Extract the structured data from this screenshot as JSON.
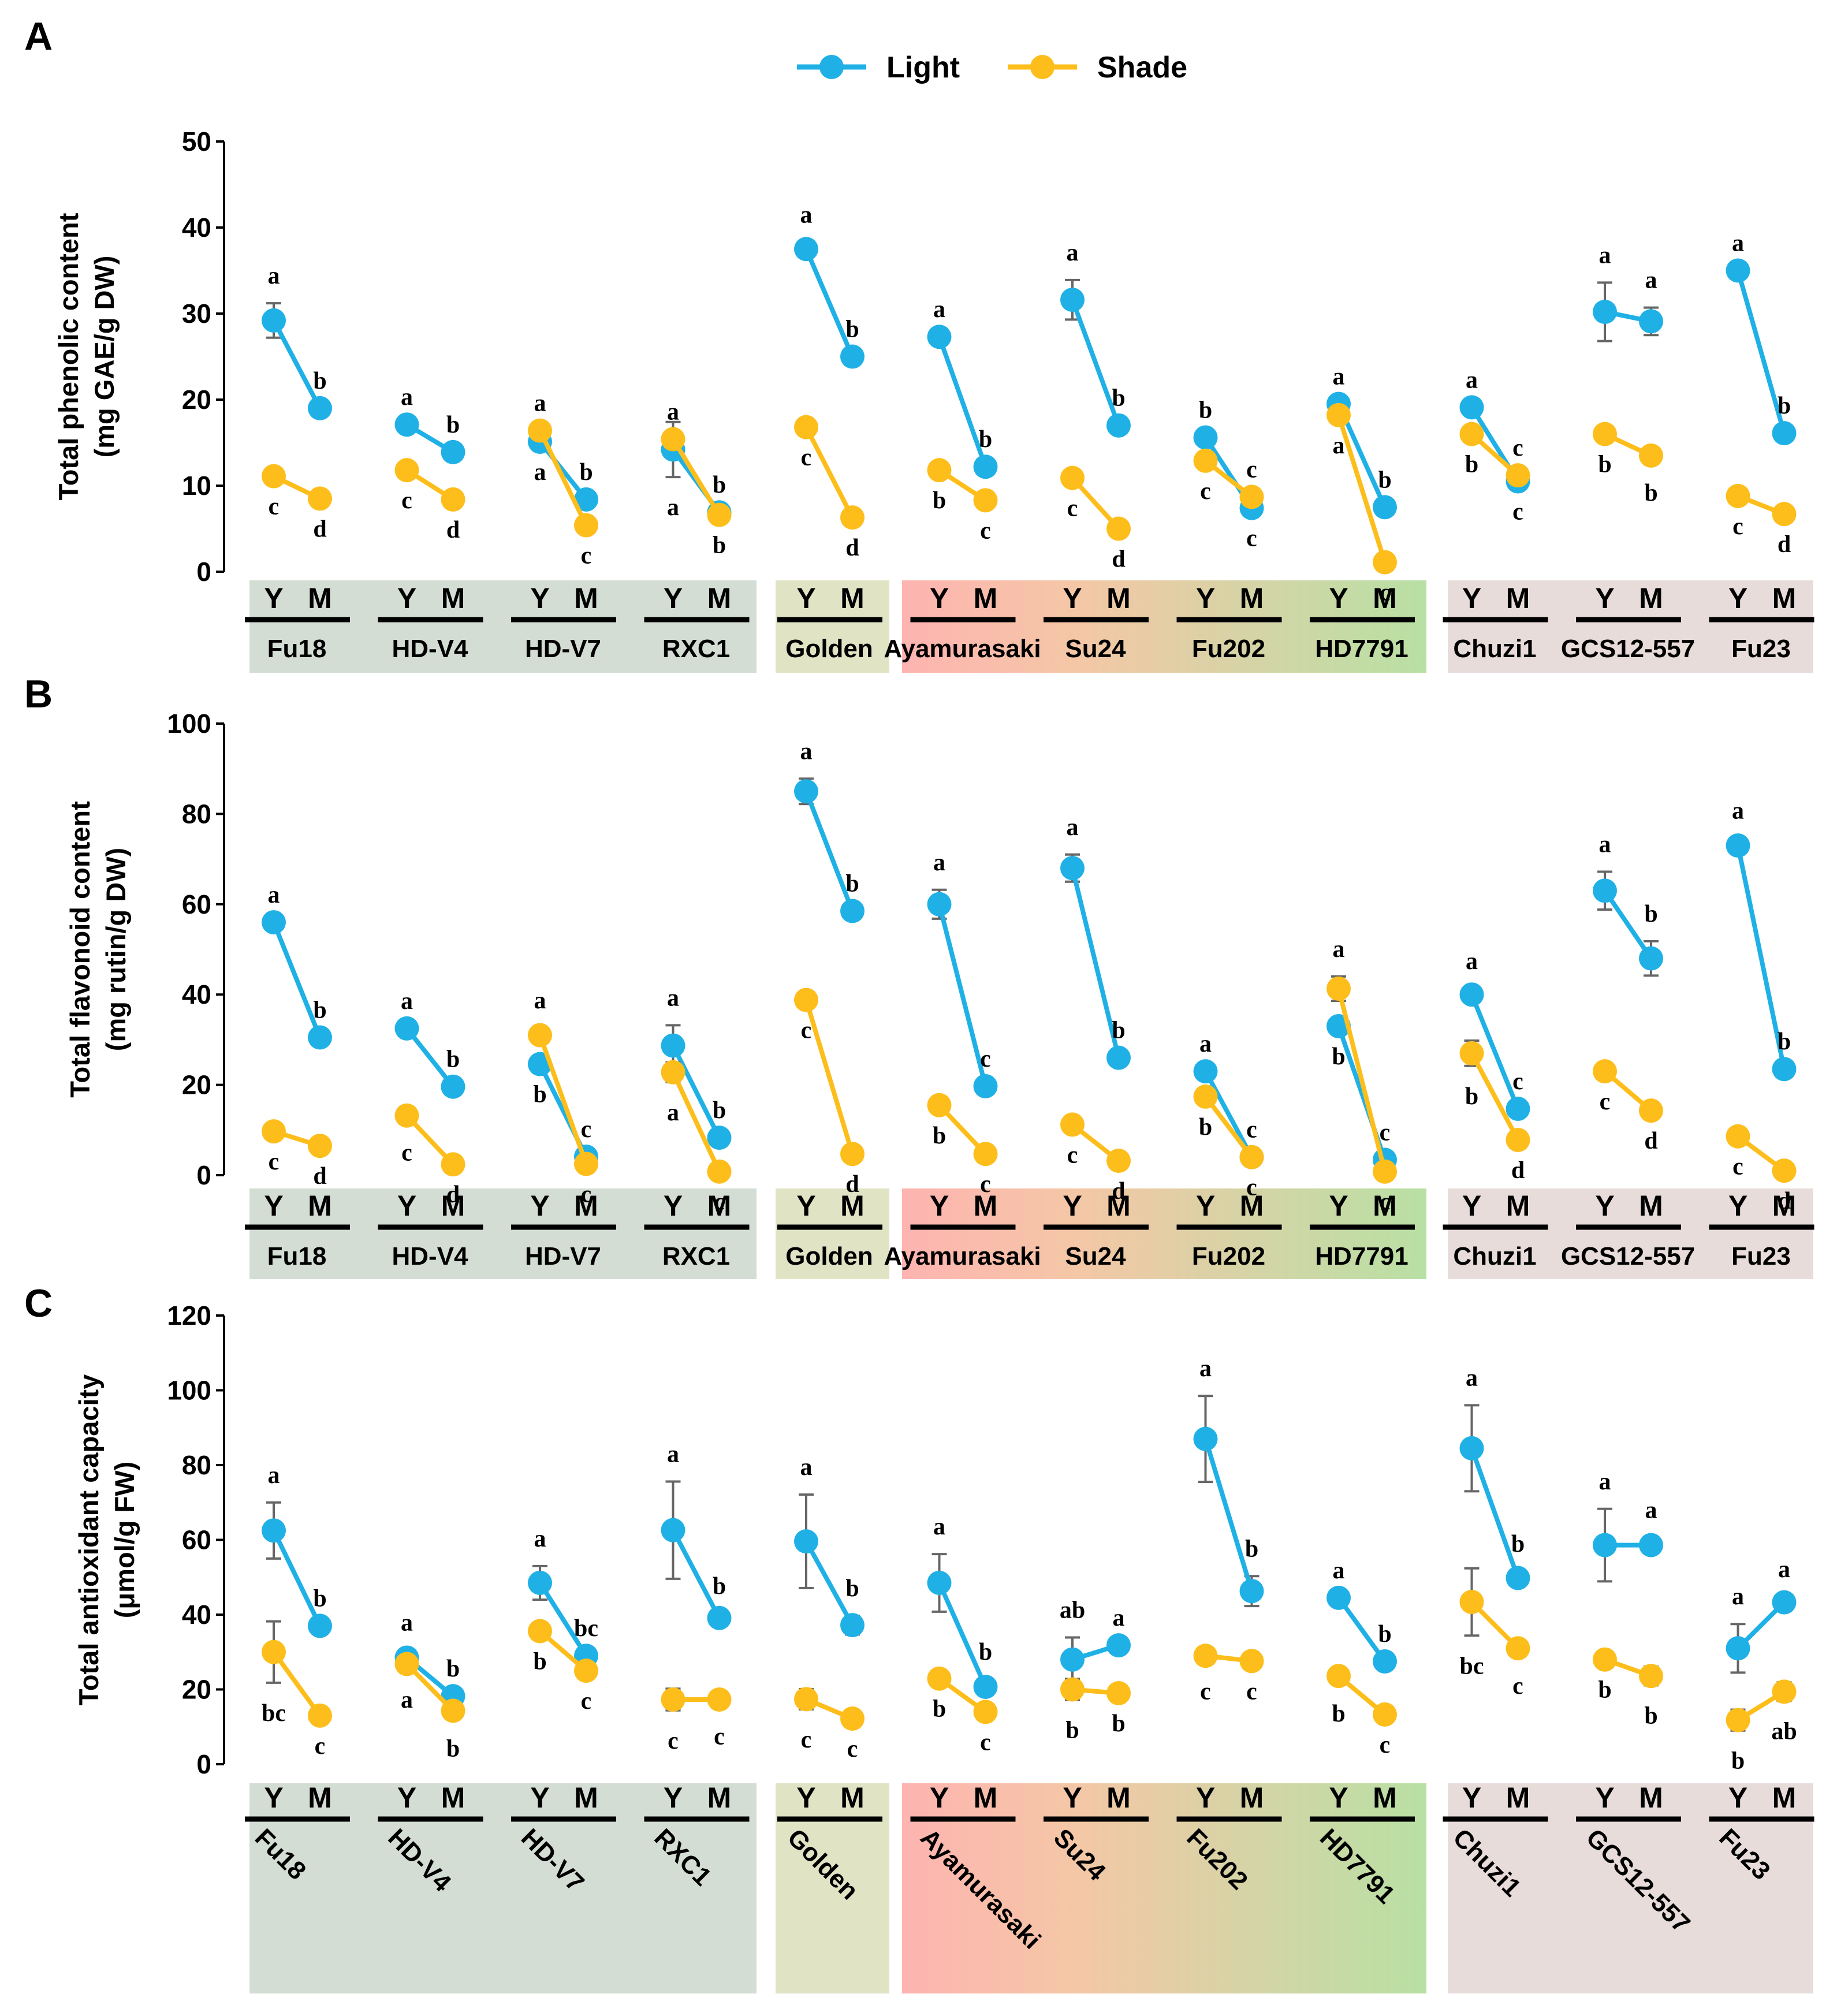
{
  "colors": {
    "light": "#1FB1E6",
    "shade": "#FDBE1B",
    "errorbar": "#666666",
    "axis": "#000000"
  },
  "legend": [
    {
      "key": "light",
      "label": "Light"
    },
    {
      "key": "shade",
      "label": "Shade"
    }
  ],
  "stage_labels": {
    "young": "Y",
    "mature": "M"
  },
  "cultivars": [
    "Fu18",
    "HD-V4",
    "HD-V7",
    "RXC1",
    "Golden",
    "Ayamurasaki",
    "Su24",
    "Fu202",
    "HD7791",
    "Chuzi1",
    "GCS12-557",
    "Fu23"
  ],
  "cultivar_groups": [
    {
      "members": [
        "Fu18",
        "HD-V4",
        "HD-V7",
        "RXC1"
      ],
      "fill": "#D4DDD4"
    },
    {
      "members": [
        "Golden"
      ],
      "fill": "#E1E3C5"
    },
    {
      "members": [
        "Ayamurasaki",
        "Su24",
        "Fu202",
        "HD7791"
      ],
      "fill_gradient": [
        "#FEB4B0",
        "#F4C7A6",
        "#D5D4A6",
        "#B8E0A4"
      ]
    },
    {
      "members": [
        "Chuzi1",
        "GCS12-557",
        "Fu23"
      ],
      "fill": "#E8DCDB"
    }
  ],
  "chart_data": [
    {
      "panel": "A",
      "type": "line",
      "ylabel_lines": [
        "Total phenolic content",
        "(mg GAE/g DW)"
      ],
      "ylim": [
        0,
        50
      ],
      "yticks": [
        0,
        10,
        20,
        30,
        40,
        50
      ],
      "rotated_cultivar_labels": false,
      "series": [
        {
          "name": "Light",
          "values": [
            [
              29.2,
              19.0
            ],
            [
              17.1,
              13.9
            ],
            [
              15.1,
              8.4
            ],
            [
              14.2,
              6.9
            ],
            [
              37.5,
              25.0
            ],
            [
              27.3,
              12.2
            ],
            [
              31.6,
              17.0
            ],
            [
              15.6,
              7.4
            ],
            [
              19.5,
              7.5
            ],
            [
              19.1,
              10.5
            ],
            [
              30.2,
              29.1
            ],
            [
              35.0,
              16.1
            ]
          ],
          "errors": [
            [
              2.0,
              0
            ],
            [
              0,
              0
            ],
            [
              0,
              0
            ],
            [
              3.2,
              0
            ],
            [
              0.8,
              0
            ],
            [
              0,
              0
            ],
            [
              2.3,
              0
            ],
            [
              0,
              0
            ],
            [
              0,
              0
            ],
            [
              0,
              0
            ],
            [
              3.4,
              1.6
            ],
            [
              0,
              0
            ]
          ],
          "letters": [
            [
              "a",
              "b"
            ],
            [
              "a",
              "b"
            ],
            [
              "a",
              "b"
            ],
            [
              "a",
              "b"
            ],
            [
              "a",
              "b"
            ],
            [
              "a",
              "b"
            ],
            [
              "a",
              "b"
            ],
            [
              "b",
              "c"
            ],
            [
              "a",
              "b"
            ],
            [
              "a",
              "c"
            ],
            [
              "a",
              "a"
            ],
            [
              "a",
              "b"
            ]
          ]
        },
        {
          "name": "Shade",
          "values": [
            [
              11.1,
              8.5
            ],
            [
              11.8,
              8.4
            ],
            [
              16.4,
              5.4
            ],
            [
              15.4,
              6.6
            ],
            [
              16.8,
              6.3
            ],
            [
              11.8,
              8.3
            ],
            [
              10.9,
              5.0
            ],
            [
              12.9,
              8.7
            ],
            [
              18.2,
              1.1
            ],
            [
              16.0,
              11.2
            ],
            [
              16.0,
              13.5
            ],
            [
              8.8,
              6.7
            ]
          ],
          "errors": [
            [
              0,
              0
            ],
            [
              0,
              0
            ],
            [
              0,
              0
            ],
            [
              0,
              0
            ],
            [
              0,
              0
            ],
            [
              0,
              0
            ],
            [
              0,
              0
            ],
            [
              0,
              0
            ],
            [
              0,
              0
            ],
            [
              0,
              0
            ],
            [
              0,
              0.8
            ],
            [
              0,
              0
            ]
          ],
          "letters": [
            [
              "c",
              "d"
            ],
            [
              "c",
              "d"
            ],
            [
              "a",
              "c"
            ],
            [
              "a",
              "b"
            ],
            [
              "c",
              "d"
            ],
            [
              "b",
              "c"
            ],
            [
              "c",
              "d"
            ],
            [
              "c",
              "c"
            ],
            [
              "a",
              "c"
            ],
            [
              "b",
              "c"
            ],
            [
              "b",
              "b"
            ],
            [
              "c",
              "d"
            ]
          ]
        }
      ]
    },
    {
      "panel": "B",
      "type": "line",
      "ylabel_lines": [
        "Total flavonoid content",
        "(mg rutin/g DW)"
      ],
      "ylim": [
        0,
        100
      ],
      "yticks": [
        0,
        20,
        40,
        60,
        80,
        100
      ],
      "rotated_cultivar_labels": false,
      "series": [
        {
          "name": "Light",
          "values": [
            [
              56.0,
              30.5
            ],
            [
              32.5,
              19.6
            ],
            [
              24.6,
              4.1
            ],
            [
              28.7,
              8.3
            ],
            [
              85.0,
              58.5
            ],
            [
              60.0,
              19.7
            ],
            [
              68.0,
              26.0
            ],
            [
              23.0,
              4.0
            ],
            [
              33.0,
              3.4
            ],
            [
              40.0,
              14.7
            ],
            [
              63.0,
              48.0
            ],
            [
              73.0,
              23.5
            ]
          ],
          "errors": [
            [
              0,
              0
            ],
            [
              0,
              0
            ],
            [
              0,
              0
            ],
            [
              4.5,
              0
            ],
            [
              2.8,
              0
            ],
            [
              3.2,
              0
            ],
            [
              3.0,
              0
            ],
            [
              0,
              0
            ],
            [
              0,
              0
            ],
            [
              1.3,
              0
            ],
            [
              4.2,
              3.8
            ],
            [
              1.6,
              0
            ]
          ],
          "letters": [
            [
              "a",
              "b"
            ],
            [
              "a",
              "b"
            ],
            [
              "b",
              "c"
            ],
            [
              "a",
              "b"
            ],
            [
              "a",
              "b"
            ],
            [
              "a",
              "c"
            ],
            [
              "a",
              "b"
            ],
            [
              "a",
              "c"
            ],
            [
              "b",
              "c"
            ],
            [
              "a",
              "c"
            ],
            [
              "a",
              "b"
            ],
            [
              "a",
              "b"
            ]
          ]
        },
        {
          "name": "Shade",
          "values": [
            [
              9.7,
              6.5
            ],
            [
              13.2,
              2.4
            ],
            [
              31.0,
              2.5
            ],
            [
              22.8,
              0.8
            ],
            [
              38.8,
              4.7
            ],
            [
              15.5,
              4.7
            ],
            [
              11.2,
              3.2
            ],
            [
              17.4,
              4.0
            ],
            [
              41.3,
              0.8
            ],
            [
              27.0,
              7.8
            ],
            [
              23.0,
              14.3
            ],
            [
              8.6,
              1.0
            ]
          ],
          "errors": [
            [
              0,
              0
            ],
            [
              1.5,
              0
            ],
            [
              1.6,
              0
            ],
            [
              2.2,
              0
            ],
            [
              0,
              0
            ],
            [
              0,
              0
            ],
            [
              0,
              0
            ],
            [
              0,
              0
            ],
            [
              2.7,
              0
            ],
            [
              2.8,
              0
            ],
            [
              0,
              0
            ],
            [
              0,
              0
            ]
          ],
          "letters": [
            [
              "c",
              "d"
            ],
            [
              "c",
              "d"
            ],
            [
              "a",
              "c"
            ],
            [
              "a",
              "c"
            ],
            [
              "c",
              "d"
            ],
            [
              "b",
              "c"
            ],
            [
              "c",
              "d"
            ],
            [
              "b",
              "c"
            ],
            [
              "a",
              "c"
            ],
            [
              "b",
              "d"
            ],
            [
              "c",
              "d"
            ],
            [
              "c",
              "d"
            ]
          ]
        }
      ]
    },
    {
      "panel": "C",
      "type": "line",
      "ylabel_lines": [
        "Total antioxidant capacity",
        "(μmol/g FW)"
      ],
      "ylim": [
        0,
        120
      ],
      "yticks": [
        0,
        20,
        40,
        60,
        80,
        100,
        120
      ],
      "rotated_cultivar_labels": true,
      "series": [
        {
          "name": "Light",
          "values": [
            [
              62.5,
              37.0
            ],
            [
              28.5,
              18.2
            ],
            [
              48.5,
              29.0
            ],
            [
              62.6,
              39.1
            ],
            [
              59.6,
              37.2
            ],
            [
              48.5,
              20.7
            ],
            [
              28.0,
              31.8
            ],
            [
              87.0,
              46.3
            ],
            [
              44.5,
              27.5
            ],
            [
              84.5,
              49.8
            ],
            [
              58.6,
              58.6
            ],
            [
              31.0,
              43.3
            ]
          ],
          "errors": [
            [
              7.5,
              0
            ],
            [
              2.0,
              0
            ],
            [
              4.5,
              0
            ],
            [
              13.0,
              1.2
            ],
            [
              12.5,
              2.5
            ],
            [
              7.7,
              2.0
            ],
            [
              5.9,
              0
            ],
            [
              11.5,
              4.0
            ],
            [
              0,
              0
            ],
            [
              11.5,
              1.8
            ],
            [
              9.7,
              2.0
            ],
            [
              6.5,
              1.5
            ]
          ],
          "letters": [
            [
              "a",
              "b"
            ],
            [
              "a",
              "b"
            ],
            [
              "a",
              "bc"
            ],
            [
              "a",
              "b"
            ],
            [
              "a",
              "b"
            ],
            [
              "a",
              "b"
            ],
            [
              "ab",
              "a"
            ],
            [
              "a",
              "b"
            ],
            [
              "a",
              "b"
            ],
            [
              "a",
              "b"
            ],
            [
              "a",
              "a"
            ],
            [
              "a",
              "a"
            ]
          ]
        },
        {
          "name": "Shade",
          "values": [
            [
              30.0,
              13.0
            ],
            [
              26.8,
              14.3
            ],
            [
              35.6,
              25.0
            ],
            [
              17.3,
              17.3
            ],
            [
              17.4,
              12.2
            ],
            [
              22.9,
              14.0
            ],
            [
              20.0,
              19.0
            ],
            [
              29.0,
              27.6
            ],
            [
              23.6,
              13.3
            ],
            [
              43.4,
              31.0
            ],
            [
              28.0,
              23.6
            ],
            [
              11.8,
              19.4
            ]
          ],
          "errors": [
            [
              8.2,
              0
            ],
            [
              1.5,
              2.0
            ],
            [
              0,
              0
            ],
            [
              2.9,
              1.8
            ],
            [
              2.7,
              0
            ],
            [
              0,
              0
            ],
            [
              2.8,
              0
            ],
            [
              1.4,
              0
            ],
            [
              2.0,
              0
            ],
            [
              9.0,
              2.0
            ],
            [
              0,
              2.5
            ],
            [
              2.8,
              2.5
            ]
          ],
          "letters": [
            [
              "bc",
              "c"
            ],
            [
              "a",
              "b"
            ],
            [
              "b",
              "c"
            ],
            [
              "c",
              "c"
            ],
            [
              "c",
              "c"
            ],
            [
              "b",
              "c"
            ],
            [
              "b",
              "b"
            ],
            [
              "c",
              "c"
            ],
            [
              "b",
              "c"
            ],
            [
              "bc",
              "c"
            ],
            [
              "b",
              "b"
            ],
            [
              "b",
              "ab"
            ]
          ]
        }
      ]
    }
  ]
}
